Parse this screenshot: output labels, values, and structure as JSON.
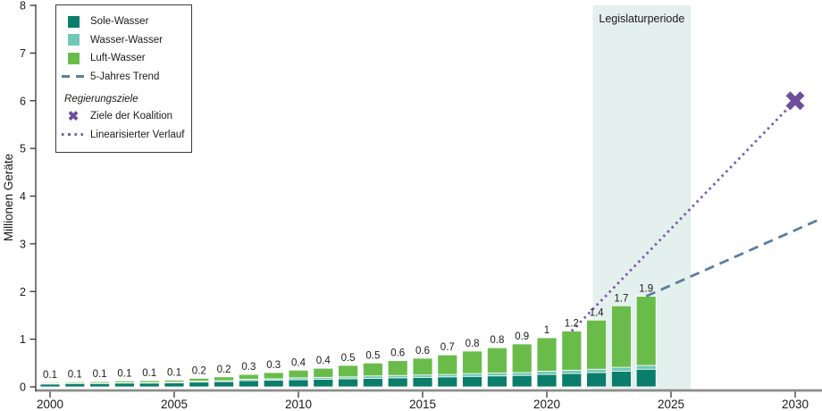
{
  "chart_data": {
    "type": "bar",
    "subtype": "stacked-bars-with-trend-lines",
    "title": "",
    "xlabel": "",
    "ylabel": "Millionen Geräte",
    "ylim": [
      0,
      8
    ],
    "yticks": [
      0,
      1,
      2,
      3,
      4,
      5,
      6,
      7,
      8
    ],
    "xticks": [
      2000,
      2005,
      2010,
      2015,
      2020,
      2025,
      2030
    ],
    "grid": false,
    "legend_position": "upper-left",
    "categories": [
      2000,
      2001,
      2002,
      2003,
      2004,
      2005,
      2006,
      2007,
      2008,
      2009,
      2010,
      2011,
      2012,
      2013,
      2014,
      2015,
      2016,
      2017,
      2018,
      2019,
      2020,
      2021,
      2022,
      2023,
      2024
    ],
    "series": [
      {
        "name": "Sole-Wasser",
        "color": "#0a7d6b",
        "values": [
          0.06,
          0.07,
          0.07,
          0.08,
          0.08,
          0.085,
          0.1,
          0.11,
          0.13,
          0.14,
          0.15,
          0.16,
          0.17,
          0.18,
          0.19,
          0.2,
          0.21,
          0.22,
          0.23,
          0.24,
          0.26,
          0.28,
          0.3,
          0.33,
          0.37
        ]
      },
      {
        "name": "Wasser-Wasser",
        "color": "#70c8b5",
        "values": [
          0.01,
          0.01,
          0.01,
          0.01,
          0.01,
          0.015,
          0.02,
          0.02,
          0.03,
          0.03,
          0.04,
          0.04,
          0.04,
          0.05,
          0.05,
          0.05,
          0.05,
          0.06,
          0.06,
          0.06,
          0.07,
          0.07,
          0.07,
          0.08,
          0.08
        ]
      },
      {
        "name": "Luft-Wasser",
        "color": "#6abc4a",
        "values": [
          0.02,
          0.025,
          0.03,
          0.035,
          0.04,
          0.04,
          0.06,
          0.08,
          0.1,
          0.13,
          0.16,
          0.19,
          0.24,
          0.27,
          0.31,
          0.35,
          0.41,
          0.47,
          0.53,
          0.6,
          0.7,
          0.82,
          1.03,
          1.29,
          1.45
        ]
      }
    ],
    "bar_labels": [
      "0.1",
      "0.1",
      "0.1",
      "0.1",
      "0.1",
      "0.1",
      "0.2",
      "0.2",
      "0.3",
      "0.3",
      "0.4",
      "0.4",
      "0.5",
      "0.5",
      "0.6",
      "0.6",
      "0.7",
      "0.8",
      "0.8",
      "0.9",
      "1",
      "1.2",
      "1.4",
      "1.7",
      "1.9"
    ],
    "lines": [
      {
        "name": "5-Jahres Trend",
        "style": "dashed",
        "color": "#5c7f9e",
        "points": [
          [
            2024,
            1.9
          ],
          [
            2031.1,
            3.54
          ]
        ]
      },
      {
        "name": "Linearisierter Verlauf",
        "style": "dotted",
        "color": "#7b59b1",
        "points": [
          [
            2021,
            1.17
          ],
          [
            2030,
            6.0
          ]
        ]
      }
    ],
    "markers": [
      {
        "name": "Ziele der Koalition",
        "shape": "X",
        "color": "#6f4e9e",
        "x": 2030,
        "y": 6.0
      }
    ],
    "region": {
      "label": "Legislaturperiode",
      "x_start": 2021.85,
      "x_end": 2025.8,
      "color": "#e4f0ed"
    },
    "colors": {
      "x_axis": "#8c8c8c",
      "y_axis": "#262626",
      "text": "#1a1a1a",
      "background": "#ffffff"
    }
  },
  "legend": {
    "items": [
      {
        "label": "Sole-Wasser"
      },
      {
        "label": "Wasser-Wasser"
      },
      {
        "label": "Luft-Wasser"
      },
      {
        "label": "5-Jahres Trend"
      }
    ],
    "section_header": "Regierungsziele",
    "goal_items": [
      {
        "label": "Ziele der Koalition",
        "glyph": "✖"
      },
      {
        "label": "Linearisierter Verlauf"
      }
    ]
  }
}
